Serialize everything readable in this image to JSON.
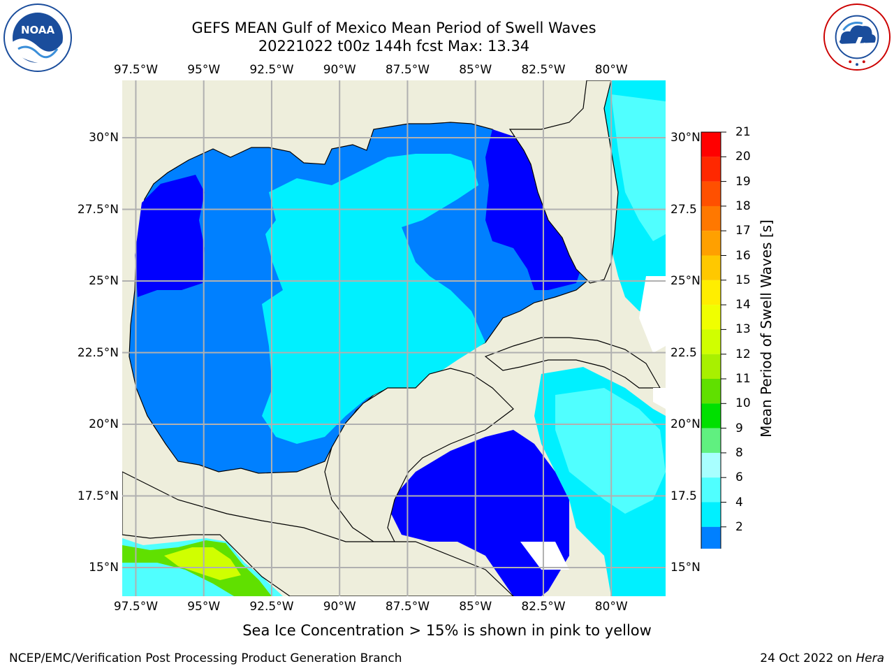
{
  "header": {
    "title_line1": "GEFS MEAN Gulf of Mexico Mean Period of Swell Waves",
    "title_line2": "20221022 t00z 144h fcst   Max: 13.34"
  },
  "logos": {
    "left": {
      "icon": "noaa-logo",
      "text_top": "NATIONAL OCEANIC AND ATMOSPHERIC ADMINISTRATION",
      "text_bottom": "U.S. DEPARTMENT OF COMMERCE",
      "label": "NOAA"
    },
    "right": {
      "icon": "nws-logo",
      "text": "NATIONAL WEATHER SERVICE"
    }
  },
  "map": {
    "lon_ticks": [
      "97.5°W",
      "95°W",
      "92.5°W",
      "90°W",
      "87.5°W",
      "85°W",
      "82.5°W",
      "80°W"
    ],
    "lon_values": [
      -97.5,
      -95,
      -92.5,
      -90,
      -87.5,
      -85,
      -82.5,
      -80
    ],
    "lat_ticks_left": [
      "30°N",
      "27.5°N",
      "25°N",
      "22.5°N",
      "20°N",
      "17.5°N",
      "15°N"
    ],
    "lat_ticks_right": [
      "30°N",
      "27.5",
      "25°N",
      "22.5",
      "20°N",
      "17.5",
      "15°N"
    ],
    "lat_values": [
      30,
      27.5,
      25,
      22.5,
      20,
      17.5,
      15
    ],
    "lon_range": [
      -98,
      -78
    ],
    "lat_range": [
      14,
      32
    ],
    "colors": {
      "land": "#eeeedc",
      "grid": "#b0b0b0"
    }
  },
  "colorbar": {
    "title": "Mean Period of Swell Waves [s]",
    "labels": [
      "21",
      "20",
      "19",
      "18",
      "17",
      "16",
      "15",
      "14",
      "13",
      "12",
      "11",
      "10",
      "9",
      "8",
      "6",
      "4",
      "2"
    ],
    "colors": [
      "#ff0000",
      "#ff2800",
      "#ff5000",
      "#ff7800",
      "#ffa000",
      "#ffc800",
      "#ffee00",
      "#f0ff00",
      "#d0ff00",
      "#a8f000",
      "#60e000",
      "#00e000",
      "#60f080",
      "#a8ffff",
      "#50ffff",
      "#00f0ff",
      "#0080ff"
    ],
    "under_color": "#0000ff"
  },
  "footnote": "Sea Ice Concentration > 15% is shown in pink to yellow",
  "footer": {
    "left": "NCEP/EMC/Verification Post Processing Product Generation Branch",
    "right_date": "24 Oct 2022 on",
    "right_host": "Hera"
  }
}
